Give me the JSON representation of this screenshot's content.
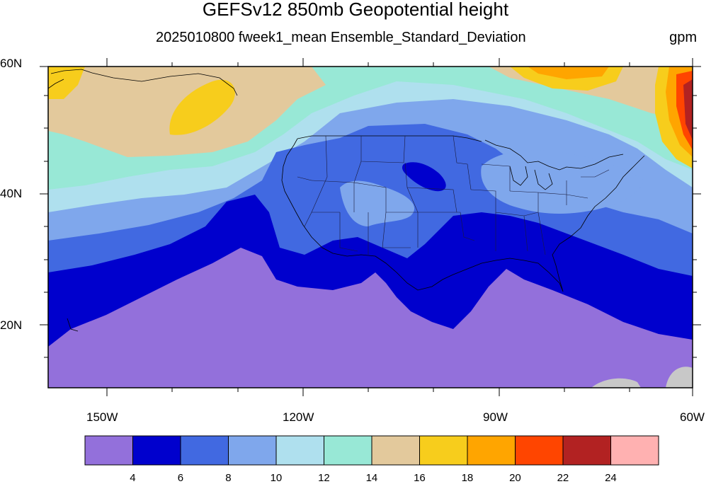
{
  "header": {
    "title": "GEFSv12 850mb Geopotential height",
    "subtitle": "2025010800 fweek1_mean Ensemble_Standard_Deviation",
    "units": "gpm"
  },
  "axes": {
    "lat_labels": [
      "60N",
      "40N",
      "20N"
    ],
    "lon_labels": [
      "150W",
      "120W",
      "90W",
      "60W"
    ]
  },
  "colorbar": {
    "colors": [
      "#9370db",
      "#0000cd",
      "#4169e1",
      "#7fa7ec",
      "#afe0ee",
      "#98e8d6",
      "#e3c99c",
      "#f7cd1c",
      "#ffa500",
      "#ff4500",
      "#b22222",
      "#ffb1b1"
    ],
    "labels": [
      "4",
      "6",
      "8",
      "10",
      "12",
      "14",
      "16",
      "18",
      "20",
      "22",
      "24"
    ]
  },
  "map_colors": {
    "land_gray": "#c8c8c8"
  }
}
